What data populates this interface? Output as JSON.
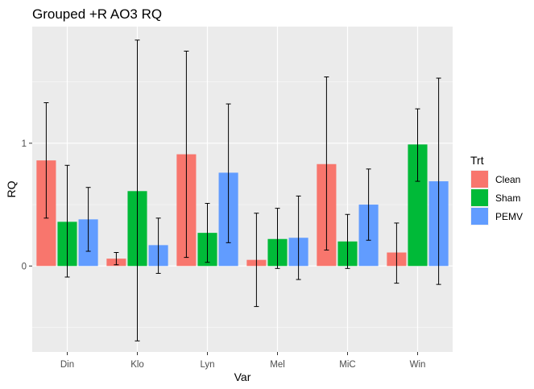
{
  "chart_data": {
    "type": "bar",
    "title": "Grouped +R AO3 RQ",
    "xlabel": "Var",
    "ylabel": "RQ",
    "categories": [
      "Din",
      "Klo",
      "Lyn",
      "Mel",
      "MiC",
      "Win"
    ],
    "ylim": [
      -0.7,
      1.95
    ],
    "yticks": [
      0,
      1
    ],
    "grid": true,
    "legend": {
      "title": "Trt",
      "position": "right"
    },
    "series": [
      {
        "name": "Clean",
        "color": "#F8766D",
        "values": [
          0.86,
          0.06,
          0.91,
          0.05,
          0.83,
          0.11
        ],
        "err_low": [
          0.39,
          0.01,
          0.07,
          -0.33,
          0.13,
          -0.14
        ],
        "err_high": [
          1.33,
          0.11,
          1.75,
          0.43,
          1.54,
          0.35
        ]
      },
      {
        "name": "Sham",
        "color": "#00BA38",
        "values": [
          0.36,
          0.61,
          0.27,
          0.22,
          0.2,
          0.99
        ],
        "err_low": [
          -0.09,
          -0.61,
          0.03,
          -0.02,
          -0.02,
          0.69
        ],
        "err_high": [
          0.82,
          1.84,
          0.51,
          0.47,
          0.42,
          1.28
        ]
      },
      {
        "name": "PEMV",
        "color": "#619CFF",
        "values": [
          0.38,
          0.17,
          0.76,
          0.23,
          0.5,
          0.69
        ],
        "err_low": [
          0.12,
          -0.06,
          0.19,
          -0.11,
          0.21,
          -0.15
        ],
        "err_high": [
          0.64,
          0.39,
          1.32,
          0.57,
          0.79,
          1.53
        ]
      }
    ]
  }
}
